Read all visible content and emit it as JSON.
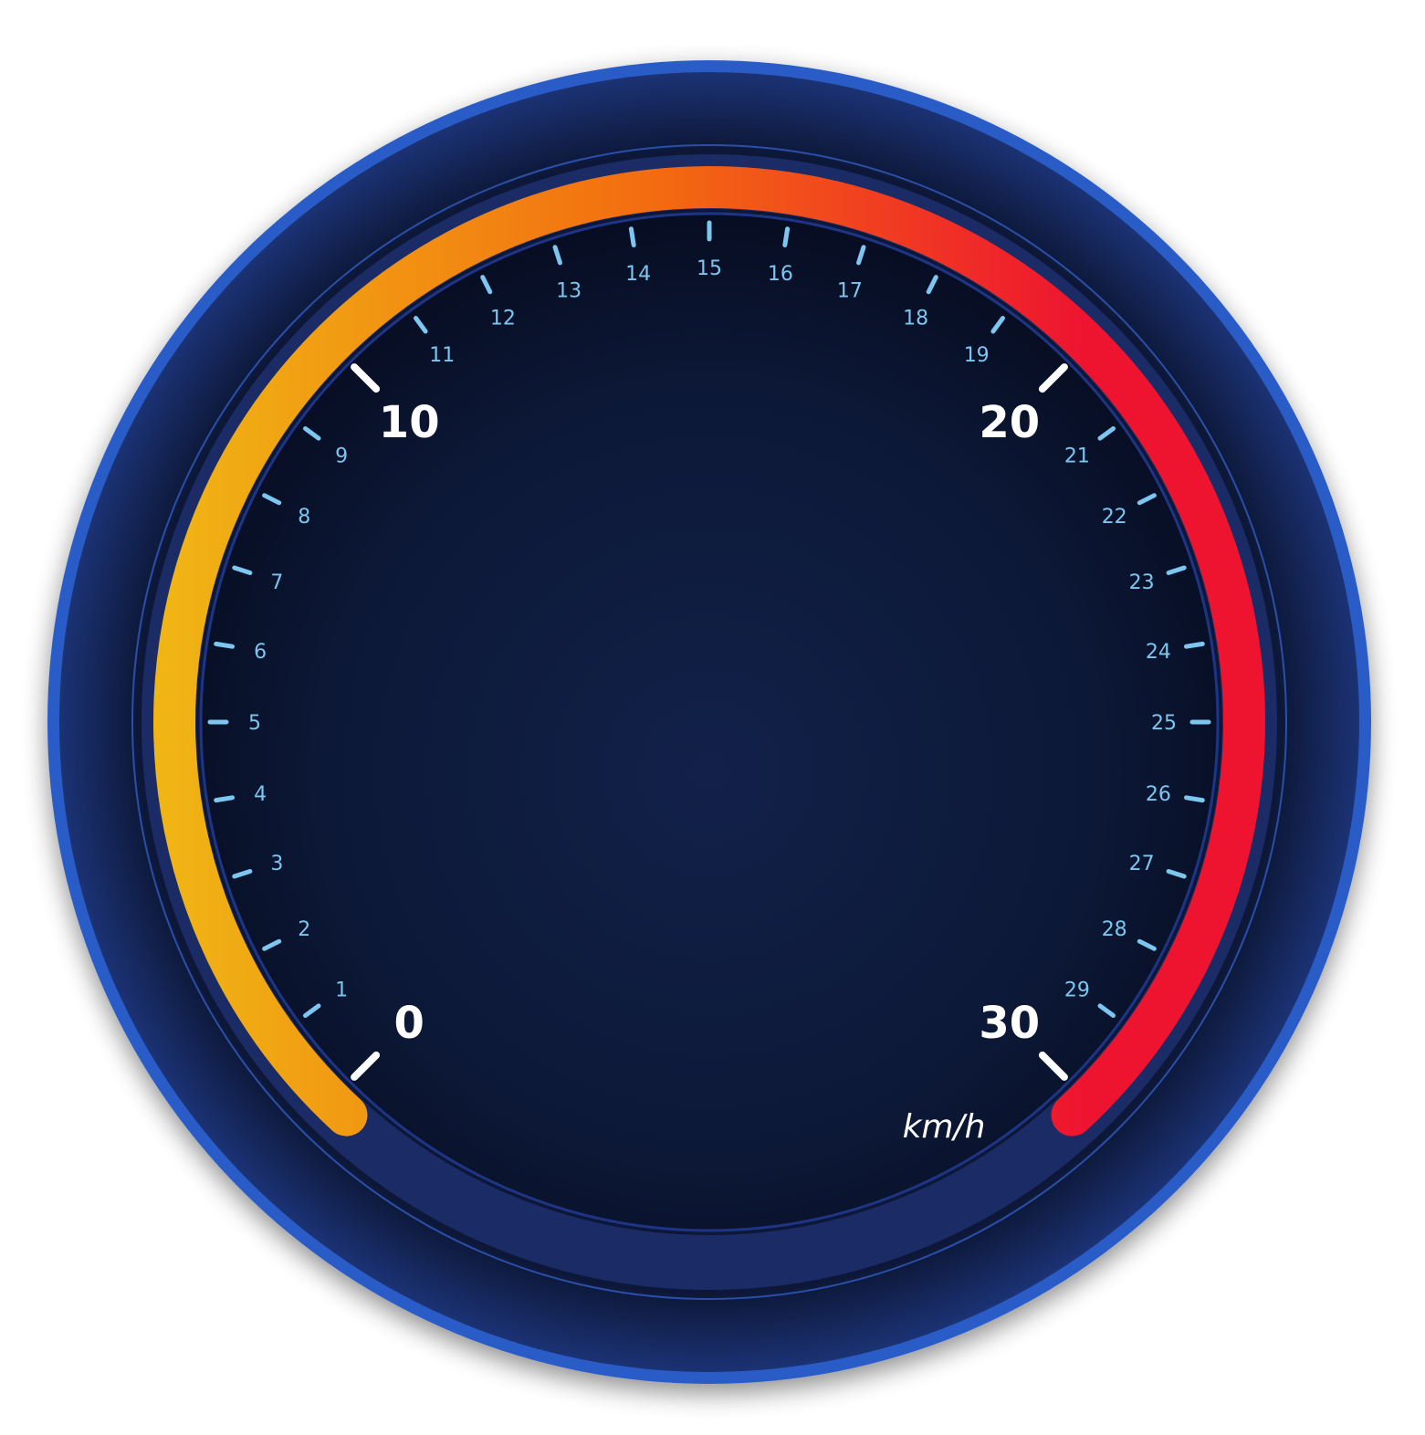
{
  "gauge": {
    "unit": "km/h",
    "min": 0,
    "max": 30,
    "value": 30,
    "major_step": 10,
    "minor_step": 1,
    "sweep_degrees": 270,
    "ticks": [
      "0",
      "1",
      "2",
      "3",
      "4",
      "5",
      "6",
      "7",
      "8",
      "9",
      "10",
      "11",
      "12",
      "13",
      "14",
      "15",
      "16",
      "17",
      "18",
      "19",
      "20",
      "21",
      "22",
      "23",
      "24",
      "25",
      "26",
      "27",
      "28",
      "29",
      "30"
    ],
    "colors": {
      "arc_start": "#f0b414",
      "arc_mid": "#f36b10",
      "arc_end": "#ee1430",
      "arc_track": "#1a2b66",
      "bezel": "#2c5cc8",
      "face": "#0c1631",
      "minor_tick": "#7cc6f0",
      "major_tick": "#ffffff"
    }
  }
}
